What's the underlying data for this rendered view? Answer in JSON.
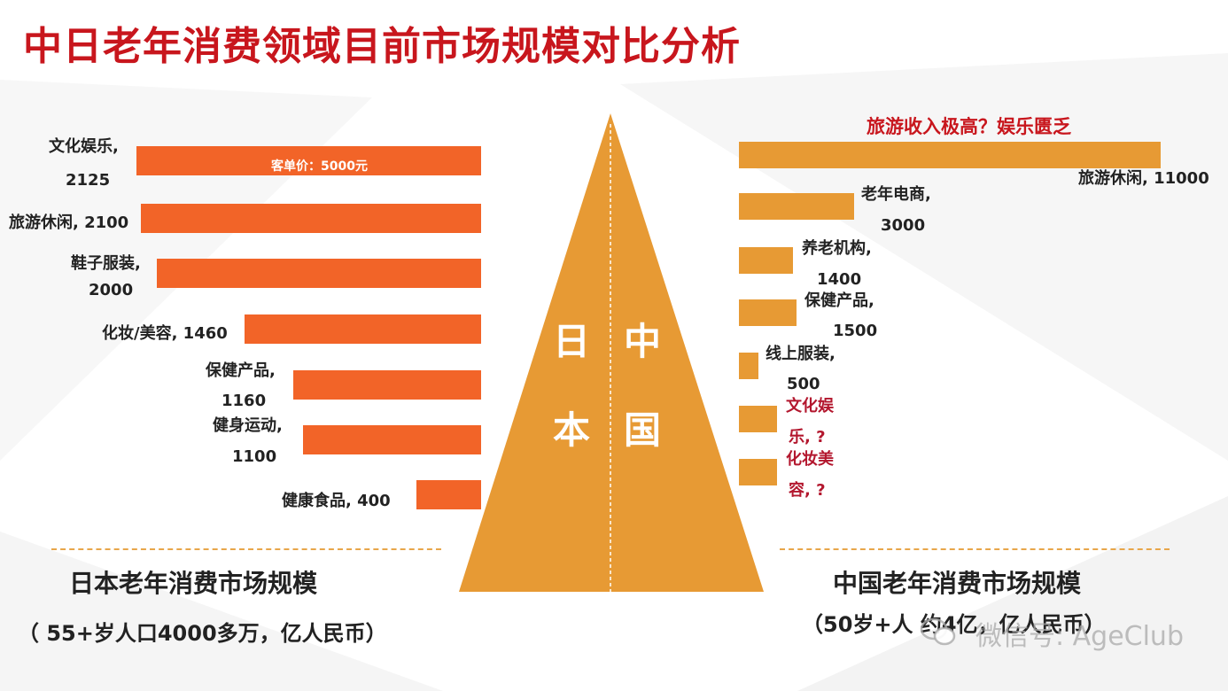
{
  "title": "中日老年消费领域目前市场规模对比分析",
  "chart_data": {
    "type": "bar",
    "japan": {
      "header": "日本老年消费市场规模",
      "note": "（ 55+岁人口4000多万，亿人民币）",
      "triangle_label": [
        "日",
        "本"
      ],
      "inbar_note": "客单价：5000元",
      "series": [
        {
          "label": "文化娱乐,",
          "value_text": "2125",
          "value": 2125
        },
        {
          "label": "旅游休闲, 2100",
          "value_text": "",
          "value": 2100
        },
        {
          "label": "鞋子服装,",
          "value_text": "2000",
          "value": 2000
        },
        {
          "label": "化妆/美容, 1460",
          "value_text": "",
          "value": 1460
        },
        {
          "label": "保健产品,",
          "value_text": "1160",
          "value": 1160
        },
        {
          "label": "健身运动,",
          "value_text": "1100",
          "value": 1100
        },
        {
          "label": "健康食品, 400",
          "value_text": "",
          "value": 400
        }
      ]
    },
    "china": {
      "header": "中国老年消费市场规模",
      "note": "（50岁+人 约4亿，亿人民币）",
      "triangle_label": [
        "中",
        "国"
      ],
      "top_note": "旅游收入极高？娱乐匮乏",
      "series": [
        {
          "label": "旅游休闲, 11000",
          "value_text": "",
          "value": 11000
        },
        {
          "label": "老年电商,",
          "value_text": "3000",
          "value": 3000
        },
        {
          "label": "养老机构,",
          "value_text": "1400",
          "value": 1400
        },
        {
          "label": "保健产品,",
          "value_text": "1500",
          "value": 1500
        },
        {
          "label": "线上服装,",
          "value_text": "500",
          "value": 500
        },
        {
          "label": "文化娱",
          "value_text": "乐, ?",
          "value": null
        },
        {
          "label": "化妆美",
          "value_text": "容, ?",
          "value": null
        }
      ]
    },
    "colors": {
      "japan_bar": "#f26428",
      "china_bar": "#e79a34",
      "triangle": "#e79a34",
      "title": "#c8161d"
    }
  },
  "watermark": "微信号: AgeClub"
}
